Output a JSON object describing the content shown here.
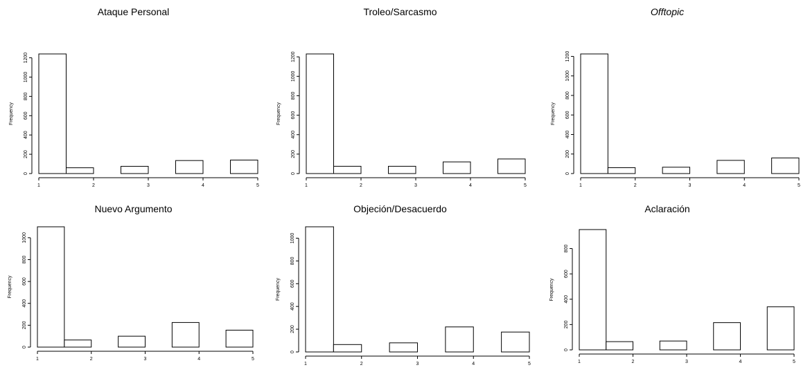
{
  "chart_data": [
    {
      "type": "bar",
      "title": "Ataque Personal",
      "title_italic": false,
      "ylabel": "Frequency",
      "xlabel": "",
      "bins": [
        [
          1,
          1.5
        ],
        [
          1.5,
          2
        ],
        [
          2,
          2.5
        ],
        [
          2.5,
          3
        ],
        [
          3,
          3.5
        ],
        [
          3.5,
          4
        ],
        [
          4,
          4.5
        ],
        [
          4.5,
          5
        ]
      ],
      "values": [
        1240,
        60,
        0,
        75,
        0,
        135,
        0,
        140
      ],
      "xticks": [
        1,
        2,
        3,
        4,
        5
      ],
      "yticks": [
        0,
        200,
        400,
        600,
        800,
        1000,
        1200
      ],
      "xlim": [
        1,
        5
      ],
      "ylim": [
        0,
        1240
      ]
    },
    {
      "type": "bar",
      "title": "Troleo/Sarcasmo",
      "title_italic": false,
      "ylabel": "Frequency",
      "xlabel": "",
      "bins": [
        [
          1,
          1.5
        ],
        [
          1.5,
          2
        ],
        [
          2,
          2.5
        ],
        [
          2.5,
          3
        ],
        [
          3,
          3.5
        ],
        [
          3.5,
          4
        ],
        [
          4,
          4.5
        ],
        [
          4.5,
          5
        ]
      ],
      "values": [
        1230,
        75,
        0,
        75,
        0,
        120,
        0,
        150
      ],
      "xticks": [
        1,
        2,
        3,
        4,
        5
      ],
      "yticks": [
        0,
        200,
        400,
        600,
        800,
        1000,
        1200
      ],
      "xlim": [
        1,
        5
      ],
      "ylim": [
        0,
        1230
      ]
    },
    {
      "type": "bar",
      "title": "Offtopic",
      "title_italic": true,
      "ylabel": "Frequency",
      "xlabel": "",
      "bins": [
        [
          1,
          1.5
        ],
        [
          1.5,
          2
        ],
        [
          2,
          2.5
        ],
        [
          2.5,
          3
        ],
        [
          3,
          3.5
        ],
        [
          3.5,
          4
        ],
        [
          4,
          4.5
        ],
        [
          4.5,
          5
        ]
      ],
      "values": [
        1225,
        60,
        0,
        65,
        0,
        135,
        0,
        160
      ],
      "xticks": [
        1,
        2,
        3,
        4,
        5
      ],
      "yticks": [
        0,
        200,
        400,
        600,
        800,
        1000,
        1200
      ],
      "xlim": [
        1,
        5
      ],
      "ylim": [
        0,
        1225
      ]
    },
    {
      "type": "bar",
      "title": "Nuevo Argumento",
      "title_italic": false,
      "ylabel": "Frequency",
      "xlabel": "",
      "bins": [
        [
          1,
          1.5
        ],
        [
          1.5,
          2
        ],
        [
          2,
          2.5
        ],
        [
          2.5,
          3
        ],
        [
          3,
          3.5
        ],
        [
          3.5,
          4
        ],
        [
          4,
          4.5
        ],
        [
          4.5,
          5
        ]
      ],
      "values": [
        1100,
        65,
        0,
        100,
        0,
        225,
        0,
        155
      ],
      "xticks": [
        1,
        2,
        3,
        4,
        5
      ],
      "yticks": [
        0,
        200,
        400,
        600,
        800,
        1000
      ],
      "xlim": [
        1,
        5
      ],
      "ylim": [
        0,
        1100
      ]
    },
    {
      "type": "bar",
      "title": "Objeción/Desacuerdo",
      "title_italic": false,
      "ylabel": "Frequency",
      "xlabel": "",
      "bins": [
        [
          1,
          1.5
        ],
        [
          1.5,
          2
        ],
        [
          2,
          2.5
        ],
        [
          2.5,
          3
        ],
        [
          3,
          3.5
        ],
        [
          3.5,
          4
        ],
        [
          4,
          4.5
        ],
        [
          4.5,
          5
        ]
      ],
      "values": [
        1100,
        65,
        0,
        80,
        0,
        220,
        0,
        175
      ],
      "xticks": [
        1,
        2,
        3,
        4,
        5
      ],
      "yticks": [
        0,
        200,
        400,
        600,
        800,
        1000
      ],
      "xlim": [
        1,
        5
      ],
      "ylim": [
        0,
        1100
      ]
    },
    {
      "type": "bar",
      "title": "Aclaración",
      "title_italic": false,
      "ylabel": "Frequency",
      "xlabel": "",
      "bins": [
        [
          1,
          1.5
        ],
        [
          1.5,
          2
        ],
        [
          2,
          2.5
        ],
        [
          2.5,
          3
        ],
        [
          3,
          3.5
        ],
        [
          3.5,
          4
        ],
        [
          4,
          4.5
        ],
        [
          4.5,
          5
        ]
      ],
      "values": [
        950,
        65,
        0,
        70,
        0,
        215,
        0,
        340
      ],
      "xticks": [
        1,
        2,
        3,
        4,
        5
      ],
      "yticks": [
        0,
        200,
        400,
        600,
        800
      ],
      "xlim": [
        1,
        5
      ],
      "ylim": [
        0,
        950
      ]
    }
  ]
}
